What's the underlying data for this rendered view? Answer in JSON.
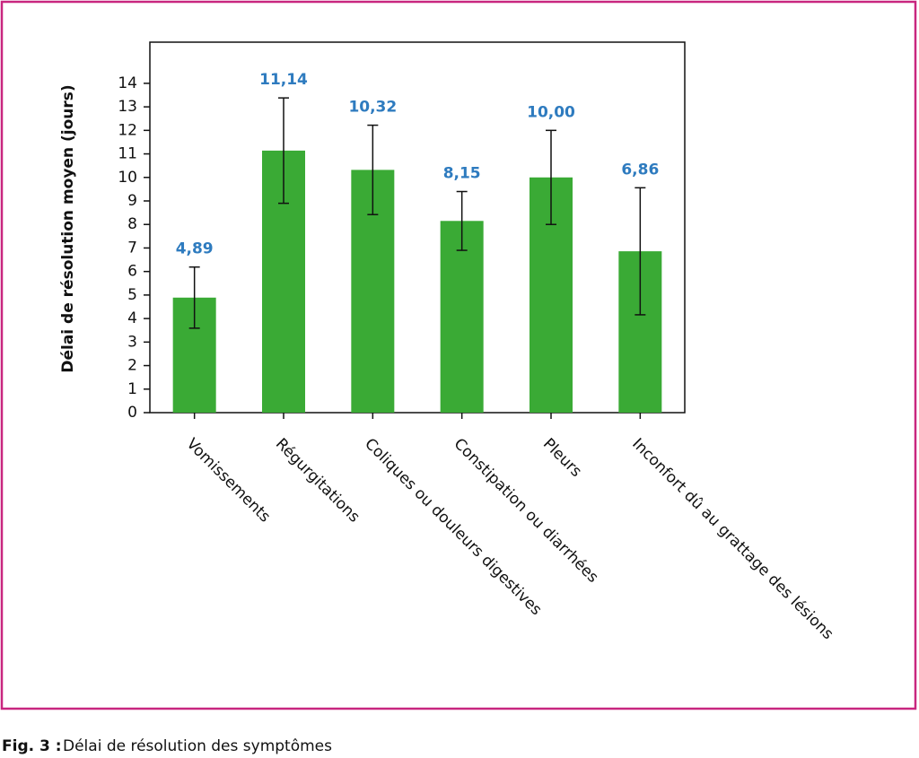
{
  "chart_data": {
    "type": "bar",
    "y_label": "Délai de résolution moyen (jours)",
    "categories": [
      "Vomissements",
      "Régurgitations",
      "Coliques ou douleurs digestives",
      "Constipation ou diarrhées",
      "Pleurs",
      "Inconfort dû au grattage des lésions"
    ],
    "values": [
      4.89,
      11.14,
      10.32,
      8.15,
      10.0,
      6.86
    ],
    "value_labels": [
      "4,89",
      "11,14",
      "10,32",
      "8,15",
      "10,00",
      "6,86"
    ],
    "errors": [
      1.3,
      2.24,
      1.9,
      1.25,
      2.0,
      2.7
    ],
    "color": "#3aaa35",
    "label_color": "#2e7bbf",
    "ylim": [
      0,
      15.75
    ],
    "yticks": [
      0,
      1,
      2,
      3,
      4,
      5,
      6,
      7,
      8,
      9,
      10,
      11,
      12,
      13,
      14
    ]
  },
  "figure": {
    "label": "Fig. 3 :",
    "caption": "Délai de résolution des symptômes"
  }
}
